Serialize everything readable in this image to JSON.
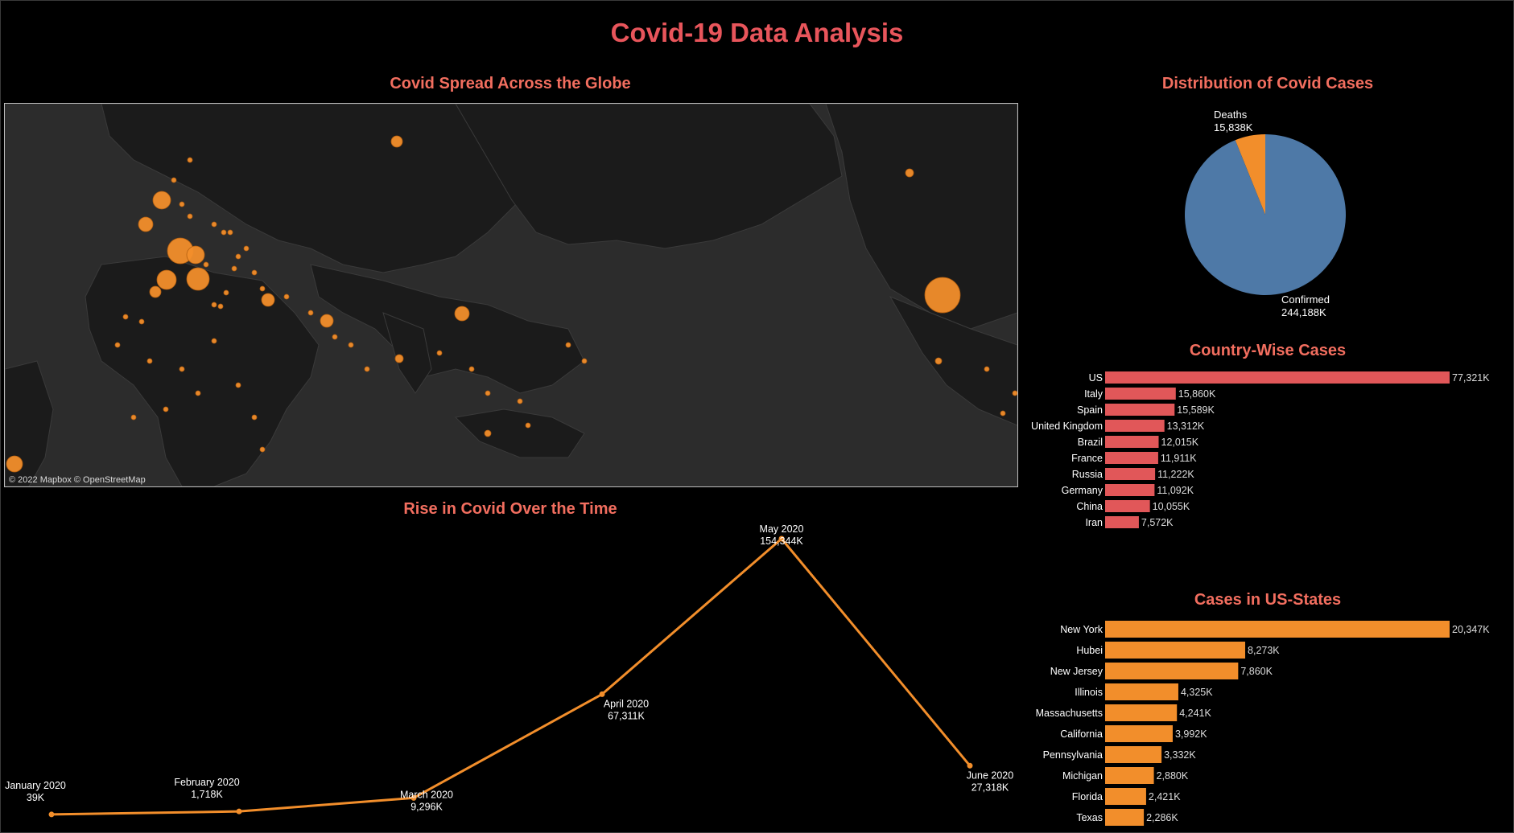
{
  "colors": {
    "background": "#000000",
    "title": "#e8555b",
    "section_title": "#f26e5f",
    "map_land": "#1b1b1b",
    "map_water": "#2c2c2c",
    "bubble": "#f28e2b",
    "pie_confirmed": "#4e79a7",
    "pie_deaths": "#f28e2b",
    "country_bar": "#e15759",
    "state_bar": "#f28e2b",
    "line": "#f28e2b"
  },
  "dashboard": {
    "title": "Covid-19 Data Analysis"
  },
  "map": {
    "title": "Covid Spread Across the Globe",
    "attribution": "© 2022 Mapbox © OpenStreetMap"
  },
  "pie": {
    "title": "Distribution of Covid Cases",
    "deaths_label": "Deaths",
    "deaths_value": "15,838K",
    "confirmed_label": "Confirmed",
    "confirmed_value": "244,188K"
  },
  "line_chart": {
    "title": "Rise in Covid Over the Time"
  },
  "country_chart": {
    "title": "Country-Wise Cases"
  },
  "states_chart": {
    "title": "Cases in US-States"
  },
  "chart_data": [
    {
      "type": "pie",
      "title": "Distribution of Covid Cases",
      "categories": [
        "Deaths",
        "Confirmed"
      ],
      "values": [
        15838,
        244188
      ],
      "unit": "K"
    },
    {
      "type": "bar",
      "title": "Country-Wise Cases",
      "orientation": "horizontal",
      "categories": [
        "US",
        "Italy",
        "Spain",
        "United Kingdom",
        "Brazil",
        "France",
        "Russia",
        "Germany",
        "China",
        "Iran"
      ],
      "values": [
        77321,
        15860,
        15589,
        13312,
        12015,
        11911,
        11222,
        11092,
        10055,
        7572
      ],
      "labels": [
        "77,321K",
        "15,860K",
        "15,589K",
        "13,312K",
        "12,015K",
        "11,911K",
        "11,222K",
        "11,092K",
        "10,055K",
        "7,572K"
      ]
    },
    {
      "type": "bar",
      "title": "Cases in US-States",
      "orientation": "horizontal",
      "categories": [
        "New York",
        "Hubei",
        "New Jersey",
        "Illinois",
        "Massachusetts",
        "California",
        "Pennsylvania",
        "Michigan",
        "Florida",
        "Texas"
      ],
      "values": [
        20347,
        8273,
        7860,
        4325,
        4241,
        3992,
        3332,
        2880,
        2421,
        2286
      ],
      "labels": [
        "20,347K",
        "8,273K",
        "7,860K",
        "4,325K",
        "4,241K",
        "3,992K",
        "3,332K",
        "2,880K",
        "2,421K",
        "2,286K"
      ]
    },
    {
      "type": "line",
      "title": "Rise in Covid Over the Time",
      "x": [
        "January 2020",
        "February 2020",
        "March 2020",
        "April 2020",
        "May 2020",
        "June 2020"
      ],
      "values": [
        39,
        1718,
        9296,
        67311,
        154344,
        27318
      ],
      "labels": [
        "39K",
        "1,718K",
        "9,296K",
        "67,311K",
        "154,344K",
        "27,318K"
      ]
    }
  ]
}
